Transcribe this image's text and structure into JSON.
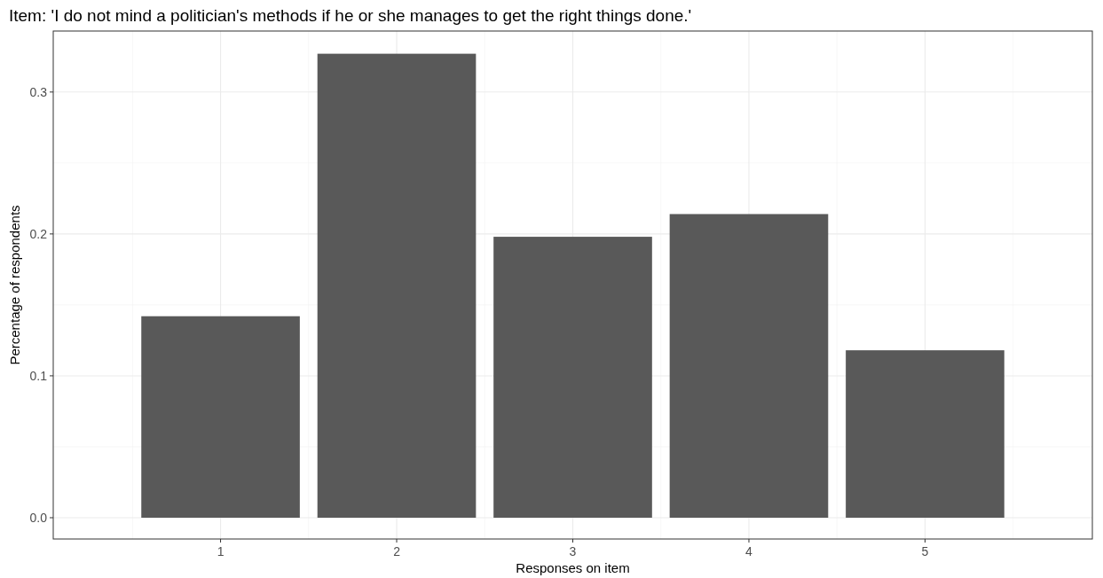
{
  "chart_data": {
    "type": "bar",
    "title": "Item: 'I do not mind a politician's methods if he or she manages to get the right things done.'",
    "xlabel": "Responses on item",
    "ylabel": "Percentage of respondents",
    "categories": [
      "1",
      "2",
      "3",
      "4",
      "5"
    ],
    "values": [
      0.142,
      0.327,
      0.198,
      0.214,
      0.118
    ],
    "color": "#595959",
    "ylim": [
      -0.015,
      0.343
    ],
    "yticks": [
      {
        "value": 0,
        "label": "0.0"
      },
      {
        "value": 0.1,
        "label": "0.1"
      },
      {
        "value": 0.2,
        "label": "0.2"
      },
      {
        "value": 0.3,
        "label": "0.3"
      }
    ],
    "grid": true
  }
}
